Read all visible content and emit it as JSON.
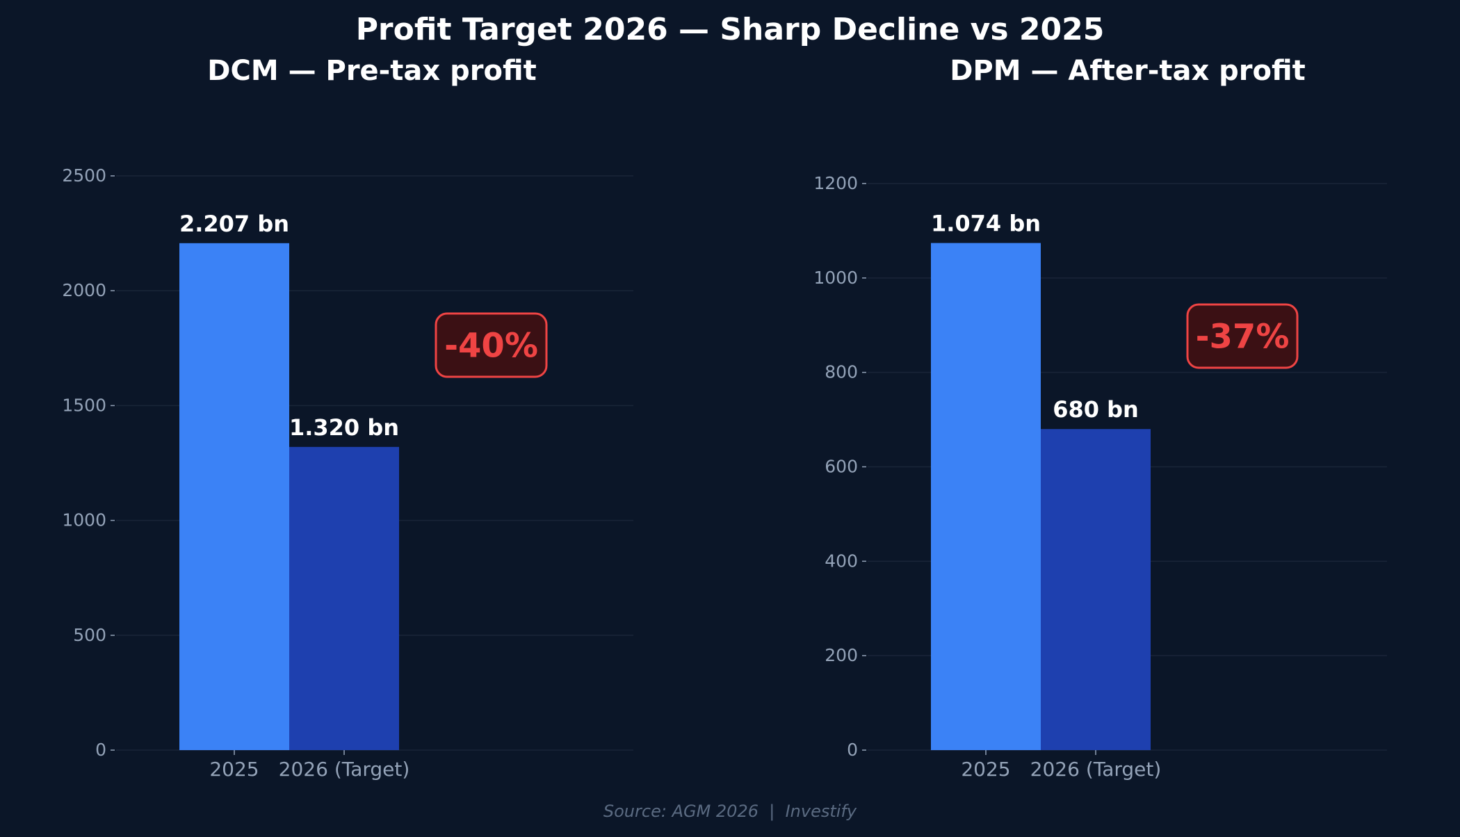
{
  "title": "Profit Target 2026 — Sharp Decline vs 2025",
  "source": "Source: AGM 2026  |  Investify",
  "colors": {
    "background": "#0b1628",
    "bar_2025": "#3b82f6",
    "bar_2026": "#1e40af",
    "badge_border": "#ef4444",
    "badge_fill": "#3b1014",
    "badge_text": "#ef4444",
    "tick_text": "#94a3b8",
    "grid": "#1a2538"
  },
  "chart_data": [
    {
      "type": "bar",
      "title": "DCM — Pre-tax profit",
      "categories": [
        "2025",
        "2026 (Target)"
      ],
      "values": [
        2207,
        1320
      ],
      "data_labels": [
        "2.207 bn",
        "1.320 bn"
      ],
      "yticks": [
        0,
        500,
        1000,
        1500,
        2000,
        2500
      ],
      "ylim": [
        0,
        2650
      ],
      "annotation": "-40%",
      "grid": true
    },
    {
      "type": "bar",
      "title": "DPM — After-tax profit",
      "categories": [
        "2025",
        "2026 (Target)"
      ],
      "values": [
        1074,
        680
      ],
      "data_labels": [
        "1.074 bn",
        "680 bn"
      ],
      "yticks": [
        0,
        200,
        400,
        600,
        800,
        1000,
        1200
      ],
      "ylim": [
        0,
        1270
      ],
      "annotation": "-37%",
      "grid": true
    }
  ]
}
